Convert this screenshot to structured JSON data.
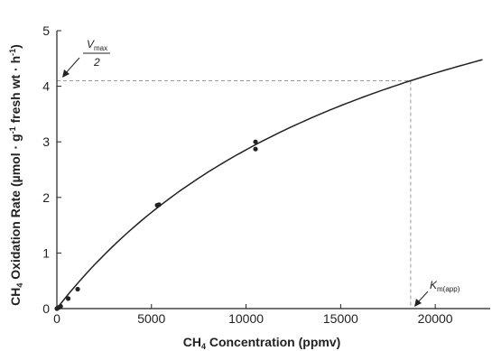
{
  "chart_data": {
    "type": "scatter",
    "title": "",
    "xlabel": {
      "base": "CH",
      "sub": "4",
      "rest": " Concentration (ppmv)"
    },
    "ylabel": {
      "base": "CH",
      "sub": "4",
      "rest": " Oxidation Rate (µmol · g",
      "sup1": "-1",
      "rest2": " fresh wt · h",
      "sup2": "-1",
      "close": ")"
    },
    "xlim": [
      0,
      23000
    ],
    "ylim": [
      0,
      5
    ],
    "x_ticks": [
      0,
      5000,
      10000,
      15000,
      20000
    ],
    "y_ticks": [
      0,
      1,
      2,
      3,
      4,
      5
    ],
    "grid": false,
    "colors": {
      "axis": "#222222",
      "curve": "#222222",
      "marker": "#222222",
      "guide": "#999999"
    },
    "series": [
      {
        "values_x": [
          0,
          100,
          200,
          600,
          1100,
          5300,
          5400,
          10500,
          10500
        ],
        "values_y": [
          0.0,
          0.02,
          0.04,
          0.18,
          0.35,
          1.86,
          1.87,
          2.87,
          3.0
        ]
      }
    ],
    "fit_curve": {
      "model": "michaelis-menten",
      "Vmax": 8.2,
      "Km": 18700,
      "x_range": [
        0,
        22500
      ]
    },
    "annotations": {
      "vmax_half": {
        "numerator_base": "V",
        "numerator_sub": "max",
        "denominator": "2",
        "y": 4.1
      },
      "km": {
        "base": "K",
        "sub": "m(app)",
        "x": 18700
      }
    }
  }
}
